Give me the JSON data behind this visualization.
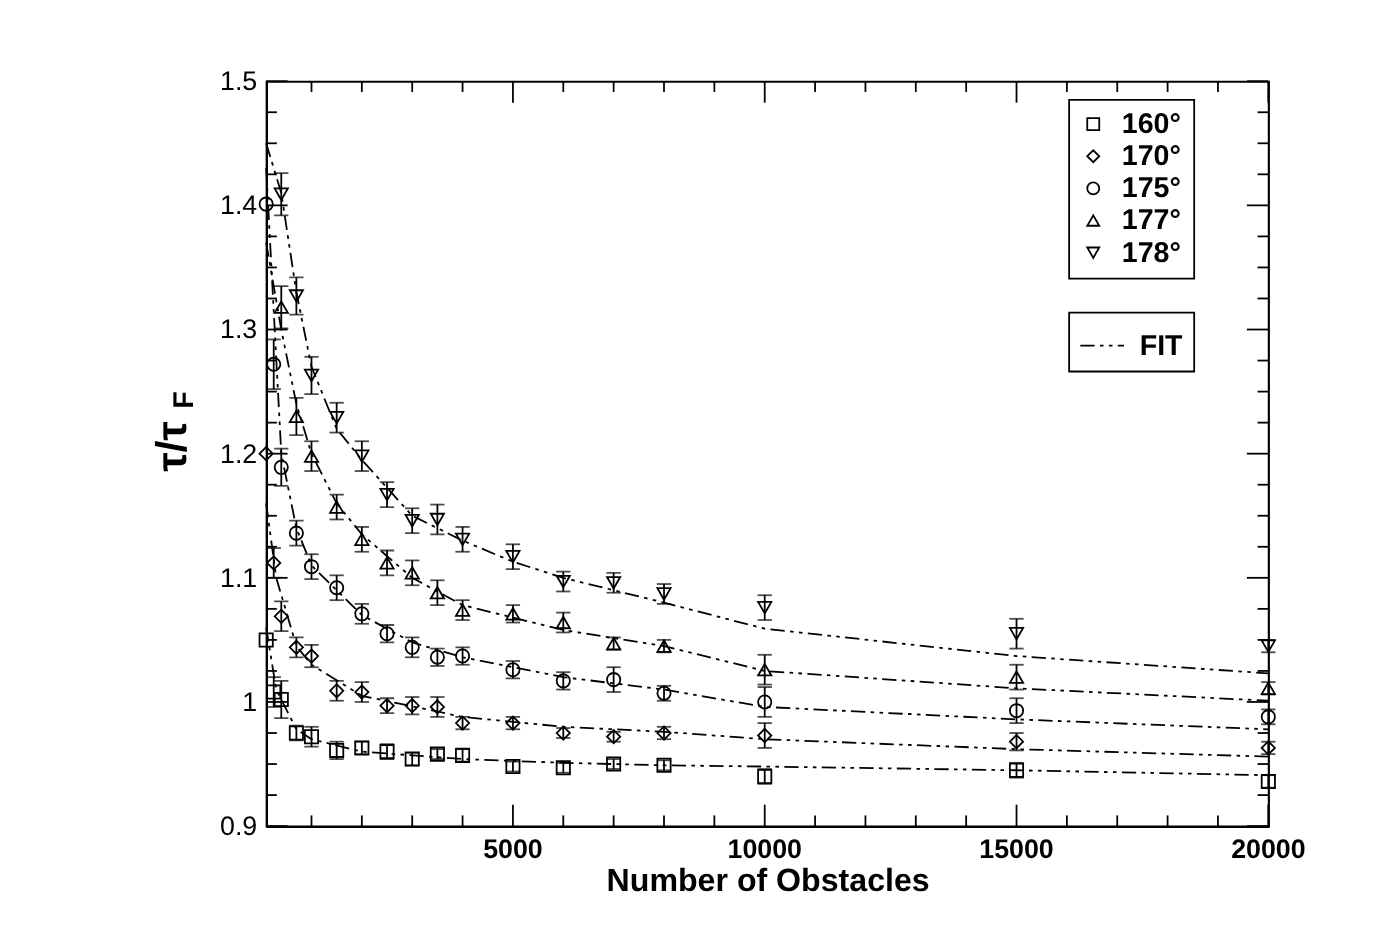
{
  "chart_data": {
    "type": "scatter",
    "xlabel": "Number of Obstacles",
    "ylabel": "τ/τ$_{F}$",
    "xlim": [
      100,
      20000
    ],
    "ylim": [
      0.9,
      1.5
    ],
    "xticks": [
      {
        "value": 1000,
        "label": null
      },
      {
        "value": 2000,
        "label": null
      },
      {
        "value": 3000,
        "label": null
      },
      {
        "value": 4000,
        "label": null
      },
      5000,
      {
        "value": 6000,
        "label": null
      },
      {
        "value": 7000,
        "label": null
      },
      {
        "value": 8000,
        "label": null
      },
      {
        "value": 9000,
        "label": null
      },
      10000,
      {
        "value": 11000,
        "label": null
      },
      {
        "value": 12000,
        "label": null
      },
      {
        "value": 13000,
        "label": null
      },
      {
        "value": 14000,
        "label": null
      },
      15000,
      {
        "value": 16000,
        "label": null
      },
      {
        "value": 17000,
        "label": null
      },
      {
        "value": 18000,
        "label": null
      },
      {
        "value": 19000,
        "label": null
      },
      20000
    ],
    "yticks": [
      0.9,
      {
        "value": 0.925,
        "label": null
      },
      {
        "value": 0.95,
        "label": null
      },
      {
        "value": 0.975,
        "label": null
      },
      1,
      {
        "value": 1.025,
        "label": null
      },
      {
        "value": 1.05,
        "label": null
      },
      {
        "value": 1.075,
        "label": null
      },
      1.1,
      {
        "value": 1.125,
        "label": null
      },
      {
        "value": 1.15,
        "label": null
      },
      {
        "value": 1.175,
        "label": null
      },
      1.2,
      {
        "value": 1.225,
        "label": null
      },
      {
        "value": 1.25,
        "label": null
      },
      {
        "value": 1.275,
        "label": null
      },
      1.3,
      {
        "value": 1.325,
        "label": null
      },
      {
        "value": 1.35,
        "label": null
      },
      {
        "value": 1.375,
        "label": null
      },
      1.4,
      {
        "value": 1.425,
        "label": null
      },
      {
        "value": 1.45,
        "label": null
      },
      {
        "value": 1.475,
        "label": null
      },
      1.5
    ],
    "grid": false,
    "legend": "top right",
    "series": [
      {
        "name": "160°",
        "color": "#000000",
        "marker": "square",
        "x": [
          100,
          250,
          400,
          700,
          1000,
          1500,
          2000,
          2500,
          3000,
          3500,
          4000,
          5000,
          6000,
          7000,
          8000,
          10000,
          15000,
          20000
        ],
        "values": [
          1.05,
          1.008,
          1.002,
          0.975,
          0.972,
          0.961,
          0.963,
          0.96,
          0.954,
          0.958,
          0.957,
          0.948,
          0.947,
          0.95,
          0.949,
          0.94,
          0.945,
          0.936
        ],
        "errors": [
          null,
          0.012,
          0.015,
          0.006,
          0.008,
          0.007,
          0.005,
          0.006,
          0.005,
          0.004,
          0.005,
          0.004,
          0.004,
          0.004,
          0.004,
          0.006,
          0.006,
          0.005
        ]
      },
      {
        "name": "170°",
        "color": "#000000",
        "marker": "diamond",
        "x": [
          100,
          250,
          400,
          700,
          1000,
          1500,
          2000,
          2500,
          3000,
          3500,
          4000,
          5000,
          6000,
          7000,
          8000,
          10000,
          15000,
          20000
        ],
        "values": [
          1.2,
          1.112,
          1.069,
          1.044,
          1.037,
          1.009,
          1.008,
          0.997,
          0.997,
          0.996,
          0.983,
          0.983,
          0.975,
          0.972,
          0.975,
          0.973,
          0.968,
          0.963
        ],
        "errors": [
          null,
          0.012,
          0.012,
          0.008,
          0.009,
          0.008,
          0.008,
          0.006,
          0.007,
          0.008,
          0.005,
          0.005,
          0.004,
          0.004,
          0.005,
          0.01,
          0.007,
          0.005
        ]
      },
      {
        "name": "175°",
        "color": "#000000",
        "marker": "circle",
        "x": [
          100,
          250,
          400,
          700,
          1000,
          1500,
          2000,
          2500,
          3000,
          3500,
          4000,
          5000,
          6000,
          7000,
          8000,
          10000,
          15000,
          20000
        ],
        "values": [
          1.401,
          1.272,
          1.189,
          1.136,
          1.109,
          1.092,
          1.071,
          1.055,
          1.044,
          1.036,
          1.037,
          1.026,
          1.017,
          1.018,
          1.007,
          1.0,
          0.993,
          0.988
        ],
        "errors": [
          null,
          0.02,
          0.015,
          0.01,
          0.01,
          0.01,
          0.008,
          0.007,
          0.008,
          0.007,
          0.007,
          0.007,
          0.007,
          0.01,
          0.006,
          0.012,
          0.01,
          0.006
        ]
      },
      {
        "name": "177°",
        "color": "#000000",
        "marker": "triangle-up",
        "x": [
          400,
          700,
          1000,
          1500,
          2000,
          2500,
          3000,
          3500,
          4000,
          5000,
          6000,
          7000,
          8000,
          10000,
          15000,
          20000
        ],
        "values": [
          1.318,
          1.23,
          1.198,
          1.157,
          1.131,
          1.112,
          1.104,
          1.088,
          1.074,
          1.071,
          1.064,
          1.047,
          1.045,
          1.026,
          1.02,
          1.011
        ],
        "errors": [
          0.017,
          0.015,
          0.012,
          0.01,
          0.01,
          0.01,
          0.01,
          0.01,
          0.008,
          0.007,
          0.008,
          0.005,
          0.005,
          0.012,
          0.01,
          0.005
        ]
      },
      {
        "name": "178°",
        "color": "#000000",
        "marker": "triangle-down",
        "x": [
          400,
          700,
          1000,
          1500,
          2000,
          2500,
          3000,
          3500,
          4000,
          5000,
          6000,
          7000,
          8000,
          10000,
          15000,
          20000
        ],
        "values": [
          1.409,
          1.327,
          1.263,
          1.229,
          1.198,
          1.167,
          1.146,
          1.147,
          1.131,
          1.117,
          1.097,
          1.096,
          1.087,
          1.076,
          1.055,
          1.045
        ],
        "errors": [
          0.017,
          0.015,
          0.015,
          0.012,
          0.012,
          0.01,
          0.01,
          0.012,
          0.01,
          0.01,
          0.008,
          0.008,
          0.008,
          0.01,
          0.012,
          0.005
        ]
      },
      {
        "name": "FIT",
        "type": "line",
        "color": "#000000",
        "marker": "none",
        "line_style": "dashed",
        "x": [
          100,
          300,
          700,
          1000,
          2000,
          4000,
          6000,
          8000,
          10000,
          15000,
          20000
        ],
        "values": [
          1.06,
          1.01,
          0.978,
          0.97,
          0.96,
          0.954,
          0.951,
          0.949,
          0.948,
          0.945,
          0.941
        ]
      },
      {
        "type": "line",
        "color": "#000000",
        "marker": "none",
        "line_style": "dashed",
        "x": [
          100,
          300,
          700,
          1000,
          2000,
          4000,
          6000,
          8000,
          10000,
          15000,
          20000
        ],
        "values": [
          1.16,
          1.1,
          1.045,
          1.03,
          1.005,
          0.988,
          0.98,
          0.976,
          0.97,
          0.962,
          0.956
        ]
      },
      {
        "type": "line",
        "color": "#000000",
        "marker": "none",
        "line_style": "dashed",
        "x": [
          100,
          400,
          700,
          1000,
          2000,
          3000,
          4000,
          6000,
          8000,
          10000,
          15000,
          20000
        ],
        "values": [
          1.43,
          1.2,
          1.14,
          1.11,
          1.07,
          1.048,
          1.036,
          1.02,
          1.01,
          0.996,
          0.986,
          0.978
        ]
      },
      {
        "type": "line",
        "color": "#000000",
        "marker": "none",
        "line_style": "dashed",
        "x": [
          100,
          400,
          700,
          1000,
          1500,
          2000,
          3000,
          4000,
          6000,
          8000,
          10000,
          15000,
          20000
        ],
        "values": [
          1.37,
          1.3,
          1.24,
          1.2,
          1.16,
          1.135,
          1.1,
          1.078,
          1.058,
          1.045,
          1.025,
          1.011,
          1.001
        ]
      },
      {
        "type": "line",
        "color": "#000000",
        "marker": "none",
        "line_style": "dashed",
        "x": [
          100,
          400,
          700,
          1000,
          1500,
          2000,
          3000,
          4000,
          5000,
          6000,
          8000,
          10000,
          15000,
          20000
        ],
        "values": [
          1.45,
          1.41,
          1.33,
          1.27,
          1.22,
          1.195,
          1.15,
          1.13,
          1.113,
          1.1,
          1.08,
          1.059,
          1.037,
          1.023
        ]
      }
    ]
  }
}
